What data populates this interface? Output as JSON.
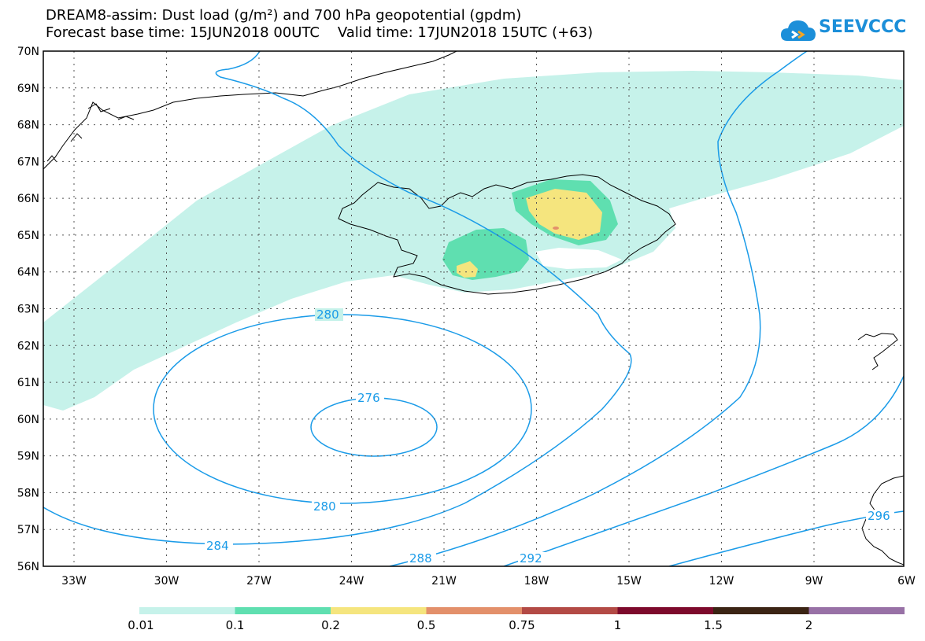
{
  "title_line1": "DREAM8-assim: Dust load (g/m²) and 700 hPa geopotential (gpdm)",
  "title_line2": "Forecast base time: 15JUN2018 00UTC    Valid time: 17JUN2018 15UTC (+63)",
  "logo_text": "SEEVCCC",
  "lat_labels": [
    "70N",
    "69N",
    "68N",
    "67N",
    "66N",
    "65N",
    "64N",
    "63N",
    "62N",
    "61N",
    "60N",
    "59N",
    "58N",
    "57N",
    "56N"
  ],
  "lon_labels": [
    "33W",
    "30W",
    "27W",
    "24W",
    "21W",
    "18W",
    "15W",
    "12W",
    "9W",
    "6W"
  ],
  "contour_labels": {
    "c276": "276",
    "c280a": "280",
    "c280b": "280",
    "c284": "284",
    "c288": "288",
    "c292": "292",
    "c296": "296"
  },
  "colorbar": {
    "colors": [
      "#c6f2ea",
      "#5fdfb0",
      "#f5e57e",
      "#e3906b",
      "#b34a45",
      "#7d0a2c",
      "#3b2414",
      "#9871a6"
    ],
    "labels": [
      "0.01",
      "0.1",
      "0.2",
      "0.5",
      "0.75",
      "1",
      "1.5",
      "2"
    ]
  },
  "colors": {
    "contour": "#1a9be8",
    "plume_low": "#c6f2ea",
    "plume_mid": "#5fdfb0",
    "plume_high": "#f5e57e",
    "plume_peak": "#e3906b",
    "coast": "#000000"
  }
}
